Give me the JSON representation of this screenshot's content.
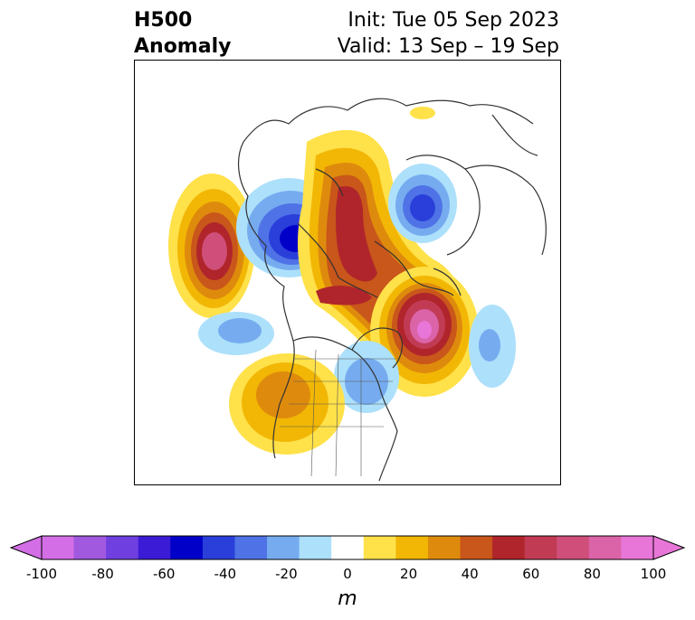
{
  "title": {
    "left_line1": "H500",
    "left_line2": "Anomaly",
    "right_line1": "Init: Tue 05 Sep 2023",
    "right_line2": "Valid: 13 Sep – 19 Sep"
  },
  "colorbar": {
    "unit": "m",
    "ticks": [
      "-100",
      "-80",
      "-60",
      "-40",
      "-20",
      "0",
      "20",
      "40",
      "60",
      "80",
      "100"
    ],
    "levels": [
      -100,
      -90,
      -80,
      -70,
      -60,
      -50,
      -40,
      -30,
      -20,
      -10,
      10,
      20,
      30,
      40,
      50,
      60,
      70,
      80,
      90,
      100
    ],
    "colors": [
      "#d36ee6",
      "#a159e0",
      "#6f3fe0",
      "#3c1bd6",
      "#0000c8",
      "#2a3fd9",
      "#4f73e6",
      "#76acef",
      "#ade0fb",
      "#ffffff",
      "#ffe14a",
      "#f2b705",
      "#de8b0d",
      "#c9561a",
      "#b0252b",
      "#c23b55",
      "#cf4f7a",
      "#db63a8",
      "#e876d8"
    ],
    "extend": "both"
  },
  "anomaly_centers": [
    {
      "sign": "positive",
      "peak_m": 80
    },
    {
      "sign": "positive",
      "peak_m": 90
    },
    {
      "sign": "positive",
      "peak_m": 70
    },
    {
      "sign": "positive",
      "peak_m": 50
    },
    {
      "sign": "negative",
      "peak_m": -60
    },
    {
      "sign": "negative",
      "peak_m": -60
    },
    {
      "sign": "negative",
      "peak_m": -40
    },
    {
      "sign": "negative",
      "peak_m": -30
    },
    {
      "sign": "negative",
      "peak_m": -40
    }
  ]
}
